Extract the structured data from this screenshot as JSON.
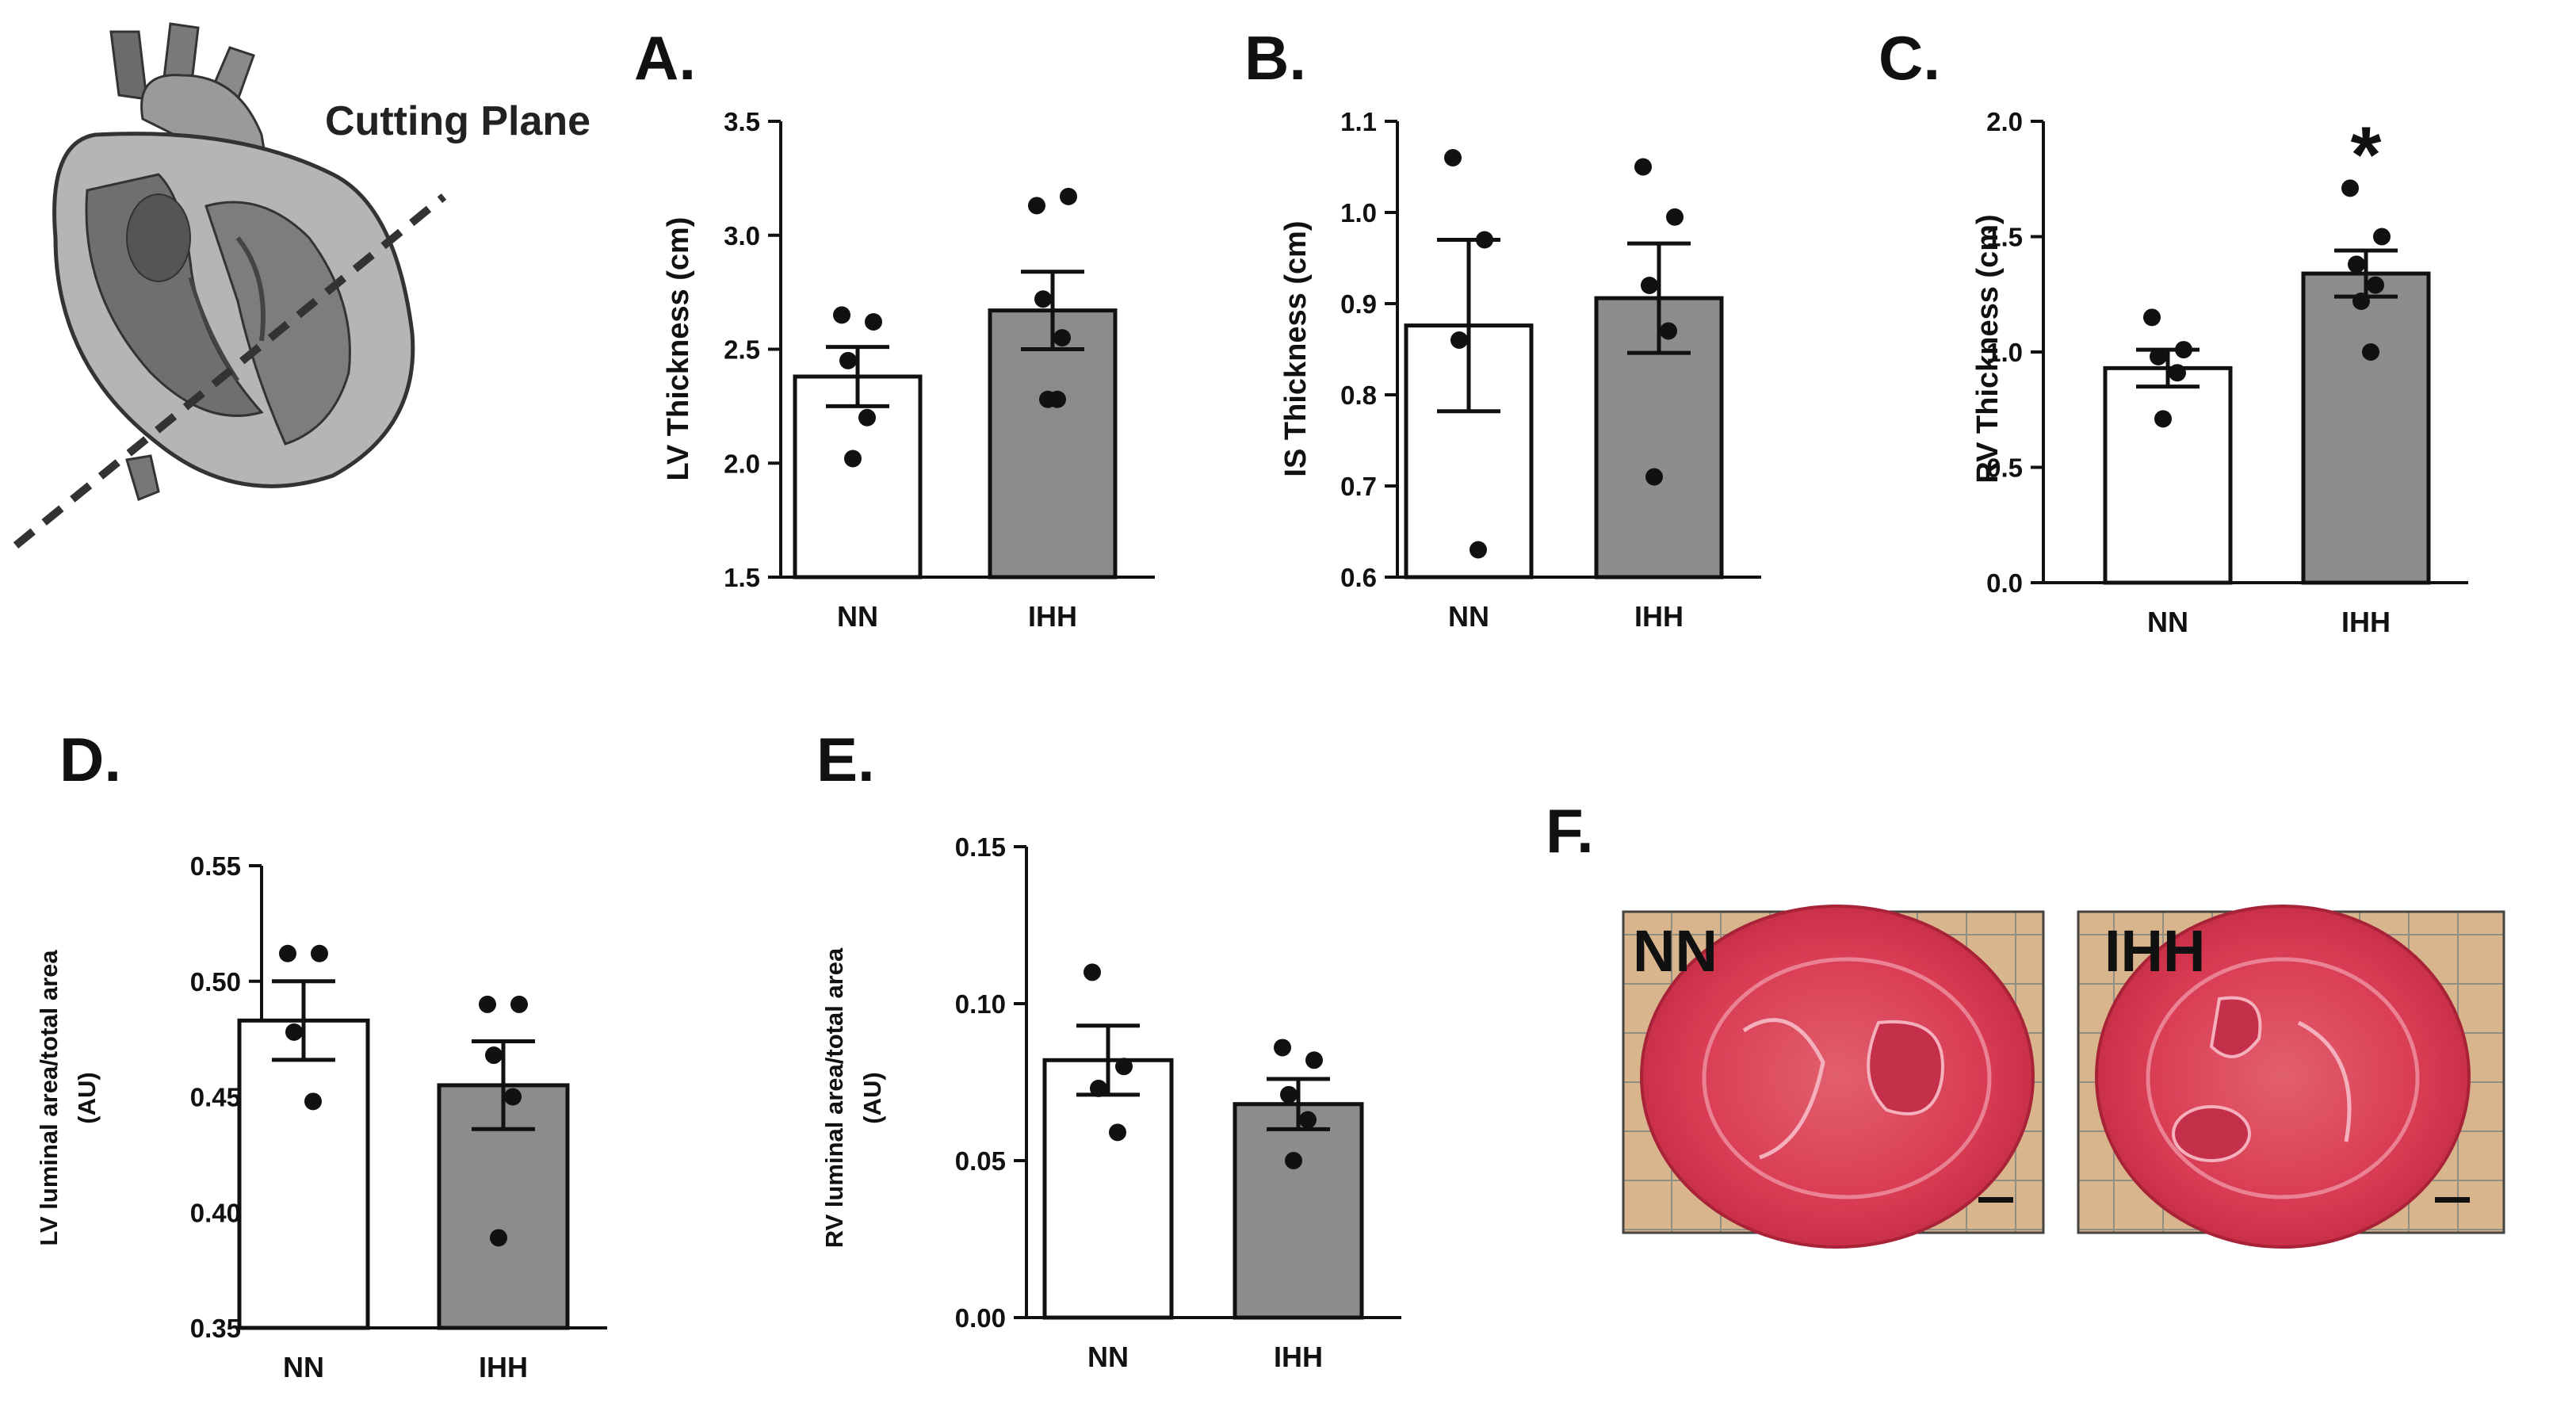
{
  "schematic": {
    "cutting_plane_label": "Cutting Plane"
  },
  "chart_data": [
    {
      "panel": "A.",
      "type": "bar",
      "categories": [
        "NN",
        "IHH"
      ],
      "ylabel": "LV Thickness (cm)",
      "ylim": [
        1.5,
        3.5
      ],
      "yticks": [
        "1.5",
        "2.0",
        "2.5",
        "3.0",
        "3.5"
      ],
      "values": [
        2.38,
        2.67
      ],
      "sem": [
        0.13,
        0.17
      ],
      "points": [
        [
          2.65,
          2.62,
          2.45,
          2.2,
          2.02
        ],
        [
          3.13,
          3.17,
          2.72,
          2.55,
          2.28,
          2.28
        ]
      ],
      "bar_colors": [
        "#ffffff",
        "#8c8c8c"
      ],
      "significance": [
        "",
        ""
      ]
    },
    {
      "panel": "B.",
      "type": "bar",
      "categories": [
        "NN",
        "IHH"
      ],
      "ylabel": "IS Thickness (cm)",
      "ylim": [
        0.6,
        1.1
      ],
      "yticks": [
        "0.6",
        "0.7",
        "0.8",
        "0.9",
        "1.0",
        "1.1"
      ],
      "values": [
        0.876,
        0.906
      ],
      "sem": [
        0.094,
        0.06
      ],
      "points": [
        [
          1.06,
          0.97,
          0.86,
          0.63
        ],
        [
          1.05,
          0.995,
          0.92,
          0.87,
          0.71
        ]
      ],
      "bar_colors": [
        "#ffffff",
        "#8c8c8c"
      ],
      "significance": [
        "",
        ""
      ]
    },
    {
      "panel": "C.",
      "type": "bar",
      "categories": [
        "NN",
        "IHH"
      ],
      "ylabel": "RV Thickness (cm)",
      "ylim": [
        0.0,
        2.0
      ],
      "yticks": [
        "0.0",
        "0.5",
        "1.0",
        "1.5",
        "2.0"
      ],
      "values": [
        0.93,
        1.34
      ],
      "sem": [
        0.08,
        0.1
      ],
      "points": [
        [
          1.15,
          1.01,
          0.98,
          0.91,
          0.71
        ],
        [
          1.71,
          1.5,
          1.38,
          1.29,
          1.22,
          1.0
        ]
      ],
      "bar_colors": [
        "#ffffff",
        "#8c8c8c"
      ],
      "significance": [
        "",
        "*"
      ]
    },
    {
      "panel": "D.",
      "type": "bar",
      "categories": [
        "NN",
        "IHH"
      ],
      "ylabel_lines": [
        "LV luminal area/total area",
        "(AU)"
      ],
      "ylim": [
        0.35,
        0.55
      ],
      "yticks": [
        "0.35",
        "0.40",
        "0.45",
        "0.50",
        "0.55"
      ],
      "values": [
        0.483,
        0.455
      ],
      "sem": [
        0.017,
        0.019
      ],
      "points": [
        [
          0.512,
          0.512,
          0.478,
          0.448
        ],
        [
          0.49,
          0.49,
          0.468,
          0.45,
          0.389
        ]
      ],
      "bar_colors": [
        "#ffffff",
        "#8c8c8c"
      ],
      "significance": [
        "",
        ""
      ]
    },
    {
      "panel": "E.",
      "type": "bar",
      "categories": [
        "NN",
        "IHH"
      ],
      "ylabel_lines": [
        "RV luminal area/total area",
        "(AU)"
      ],
      "ylim": [
        0.0,
        0.15
      ],
      "yticks": [
        "0.00",
        "0.05",
        "0.10",
        "0.15"
      ],
      "values": [
        0.082,
        0.068
      ],
      "sem": [
        0.011,
        0.008
      ],
      "points": [
        [
          0.11,
          0.08,
          0.073,
          0.059
        ],
        [
          0.086,
          0.082,
          0.071,
          0.063,
          0.05
        ]
      ],
      "bar_colors": [
        "#ffffff",
        "#8c8c8c"
      ],
      "significance": [
        "",
        ""
      ]
    }
  ],
  "histology": {
    "panel": "F.",
    "images": [
      {
        "label": "NN"
      },
      {
        "label": "IHH"
      }
    ]
  }
}
